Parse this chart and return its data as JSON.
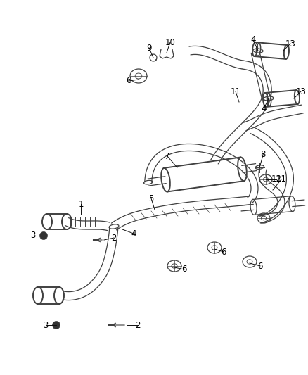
{
  "background_color": "#ffffff",
  "line_color": "#404040",
  "label_color": "#000000",
  "fig_width": 4.38,
  "fig_height": 5.33,
  "dpi": 100
}
